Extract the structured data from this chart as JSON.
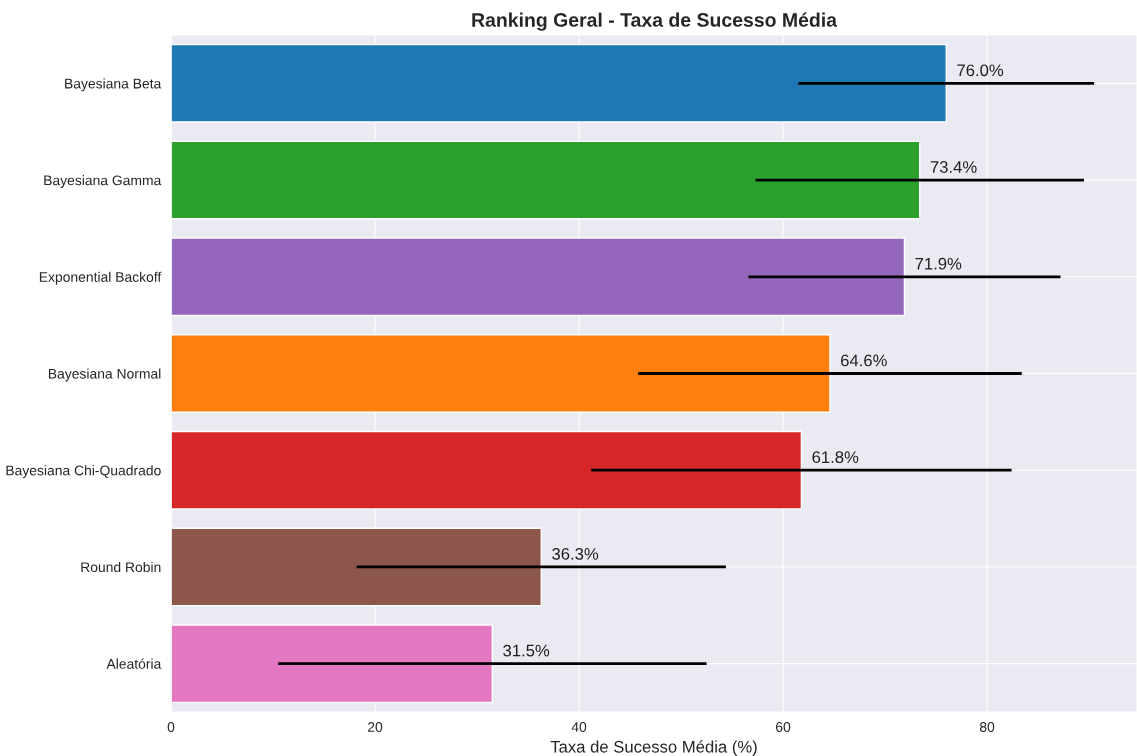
{
  "chart_data": {
    "type": "bar",
    "orientation": "horizontal",
    "title": "Ranking Geral - Taxa de Sucesso Média",
    "xlabel": "Taxa de Sucesso Média (%)",
    "categories": [
      "Bayesiana Beta",
      "Bayesiana Gamma",
      "Exponential Backoff",
      "Bayesiana Normal",
      "Bayesiana Chi-Quadrado",
      "Round Robin",
      "Aleatória"
    ],
    "values": [
      76.0,
      73.4,
      71.9,
      64.6,
      61.8,
      36.3,
      31.5
    ],
    "colors": [
      "#1f77b4",
      "#2ca02c",
      "#9467bd",
      "#ff7f0e",
      "#d62728",
      "#8c564b",
      "#e377c2"
    ],
    "errors": [
      14.5,
      16.1,
      15.3,
      18.8,
      20.6,
      18.1,
      21.0
    ],
    "value_labels": [
      "76.0%",
      "73.4%",
      "71.9%",
      "64.6%",
      "61.8%",
      "36.3%",
      "31.5%"
    ],
    "xlim": [
      0,
      94.7
    ],
    "xticks": [
      0,
      20,
      40,
      60,
      80
    ],
    "grid": true
  }
}
